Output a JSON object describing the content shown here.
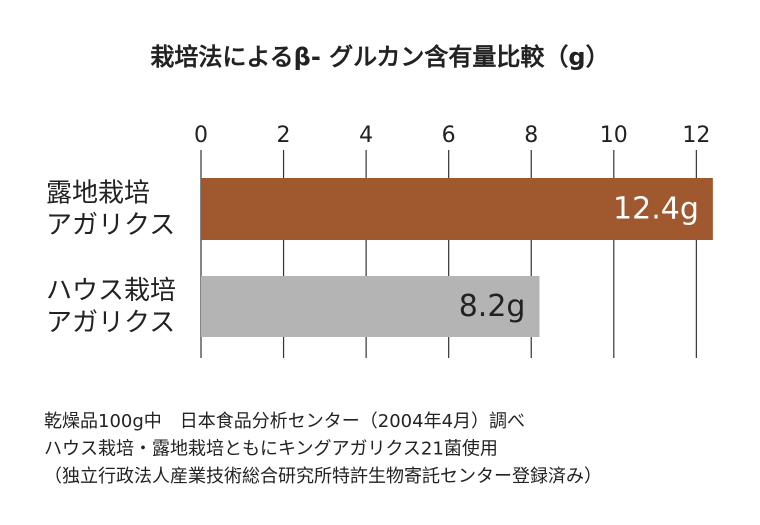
{
  "chart_data": {
    "type": "bar",
    "orientation": "horizontal",
    "title": "栽培法によるβ- グルカン含有量比較（g）",
    "categories": [
      [
        "露地栽培",
        "アガリクス"
      ],
      [
        "ハウス栽培",
        "アガリクス"
      ]
    ],
    "values": [
      12.4,
      8.2
    ],
    "value_labels": [
      "12.4g",
      "8.2g"
    ],
    "colors": [
      "#a0582e",
      "#b4b4b4"
    ],
    "xlim": [
      0,
      12.5
    ],
    "xticks": [
      0,
      2,
      4,
      6,
      8,
      10,
      12
    ],
    "grid": true,
    "notes": [
      "乾燥品100g中　日本食品分析センター（2004年4月）調べ",
      "ハウス栽培・露地栽培ともにキングアガリクス21菌使用",
      "（独立行政法人産業技術総合研究所特許生物寄託センター登録済み）"
    ]
  }
}
